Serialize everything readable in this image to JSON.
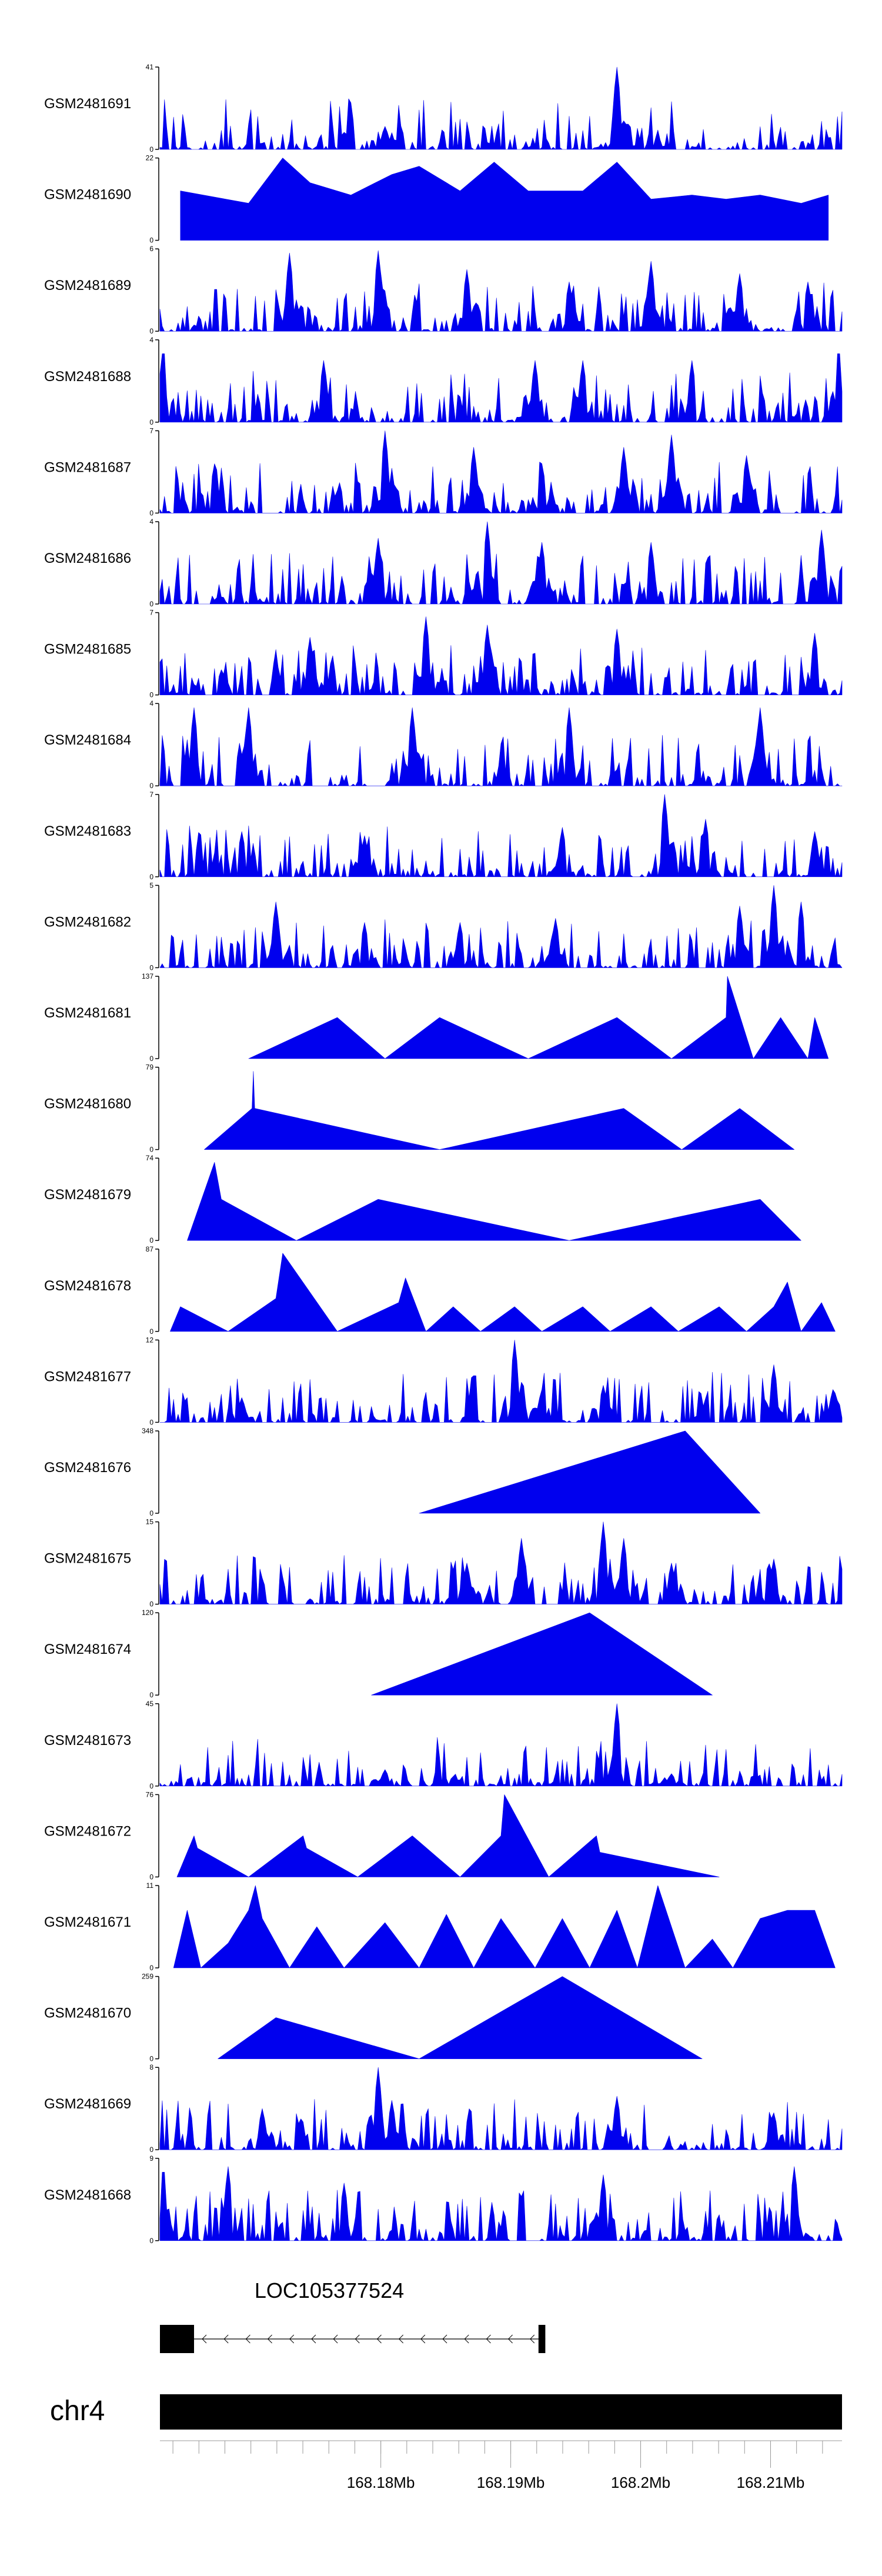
{
  "chart_data": {
    "type": "area",
    "title": "",
    "color": "#0000ee",
    "tracks": [
      {
        "name": "GSM2481691",
        "ymax": "41",
        "ymin": "0",
        "style": "dense",
        "peaks": [
          {
            "x": 0.33,
            "h": 0.28
          },
          {
            "x": 0.67,
            "h": 1.0
          },
          {
            "x": 0.685,
            "h": 0.35
          },
          {
            "x": 0.73,
            "h": 0.15
          }
        ]
      },
      {
        "name": "GSM2481690",
        "ymax": "22",
        "ymin": "0",
        "style": "triangles",
        "peaks": [
          {
            "x": 0.03,
            "h": 0.6
          },
          {
            "x": 0.13,
            "h": 0.45
          },
          {
            "x": 0.18,
            "h": 1.0
          },
          {
            "x": 0.22,
            "h": 0.7
          },
          {
            "x": 0.28,
            "h": 0.55
          },
          {
            "x": 0.34,
            "h": 0.8
          },
          {
            "x": 0.38,
            "h": 0.9
          },
          {
            "x": 0.44,
            "h": 0.6
          },
          {
            "x": 0.49,
            "h": 0.95
          },
          {
            "x": 0.54,
            "h": 0.6
          },
          {
            "x": 0.62,
            "h": 0.6
          },
          {
            "x": 0.67,
            "h": 0.95
          },
          {
            "x": 0.72,
            "h": 0.5
          },
          {
            "x": 0.78,
            "h": 0.55
          },
          {
            "x": 0.83,
            "h": 0.5
          },
          {
            "x": 0.88,
            "h": 0.55
          },
          {
            "x": 0.94,
            "h": 0.45
          },
          {
            "x": 0.98,
            "h": 0.55
          }
        ]
      },
      {
        "name": "GSM2481689",
        "ymax": "6",
        "ymin": "0",
        "style": "dense",
        "peaks": [
          {
            "x": 0.19,
            "h": 0.95
          },
          {
            "x": 0.32,
            "h": 0.98
          },
          {
            "x": 0.45,
            "h": 0.75
          },
          {
            "x": 0.6,
            "h": 0.6
          },
          {
            "x": 0.72,
            "h": 0.85
          },
          {
            "x": 0.85,
            "h": 0.7
          },
          {
            "x": 0.95,
            "h": 0.6
          }
        ]
      },
      {
        "name": "GSM2481688",
        "ymax": "4",
        "ymin": "0",
        "style": "dense",
        "peaks": [
          {
            "x": 0.005,
            "h": 0.95
          },
          {
            "x": 0.24,
            "h": 0.75
          },
          {
            "x": 0.55,
            "h": 0.75
          },
          {
            "x": 0.62,
            "h": 0.75
          },
          {
            "x": 0.78,
            "h": 0.75
          },
          {
            "x": 0.995,
            "h": 0.95
          }
        ]
      },
      {
        "name": "GSM2481687",
        "ymax": "7",
        "ymin": "0",
        "style": "dense",
        "peaks": [
          {
            "x": 0.08,
            "h": 0.6
          },
          {
            "x": 0.33,
            "h": 1.0
          },
          {
            "x": 0.46,
            "h": 0.8
          },
          {
            "x": 0.56,
            "h": 0.6
          },
          {
            "x": 0.68,
            "h": 0.8
          },
          {
            "x": 0.75,
            "h": 0.95
          },
          {
            "x": 0.86,
            "h": 0.7
          }
        ]
      },
      {
        "name": "GSM2481686",
        "ymax": "4",
        "ymin": "0",
        "style": "dense",
        "peaks": [
          {
            "x": 0.32,
            "h": 0.8
          },
          {
            "x": 0.48,
            "h": 1.0
          },
          {
            "x": 0.56,
            "h": 0.75
          },
          {
            "x": 0.72,
            "h": 0.75
          },
          {
            "x": 0.97,
            "h": 0.9
          }
        ]
      },
      {
        "name": "GSM2481685",
        "ymax": "7",
        "ymin": "0",
        "style": "dense",
        "peaks": [
          {
            "x": 0.22,
            "h": 0.7
          },
          {
            "x": 0.39,
            "h": 0.95
          },
          {
            "x": 0.48,
            "h": 0.85
          },
          {
            "x": 0.67,
            "h": 0.8
          },
          {
            "x": 0.96,
            "h": 0.75
          }
        ]
      },
      {
        "name": "GSM2481684",
        "ymax": "4",
        "ymin": "0",
        "style": "dense",
        "peaks": [
          {
            "x": 0.05,
            "h": 0.95
          },
          {
            "x": 0.13,
            "h": 0.95
          },
          {
            "x": 0.37,
            "h": 0.95
          },
          {
            "x": 0.6,
            "h": 0.95
          },
          {
            "x": 0.88,
            "h": 0.95
          }
        ]
      },
      {
        "name": "GSM2481683",
        "ymax": "7",
        "ymin": "0",
        "style": "dense",
        "peaks": [
          {
            "x": 0.12,
            "h": 0.55
          },
          {
            "x": 0.3,
            "h": 0.5
          },
          {
            "x": 0.59,
            "h": 0.6
          },
          {
            "x": 0.74,
            "h": 1.0
          },
          {
            "x": 0.8,
            "h": 0.7
          },
          {
            "x": 0.96,
            "h": 0.55
          }
        ]
      },
      {
        "name": "GSM2481682",
        "ymax": "5",
        "ymin": "0",
        "style": "dense",
        "peaks": [
          {
            "x": 0.17,
            "h": 0.8
          },
          {
            "x": 0.3,
            "h": 0.55
          },
          {
            "x": 0.44,
            "h": 0.55
          },
          {
            "x": 0.58,
            "h": 0.6
          },
          {
            "x": 0.85,
            "h": 0.75
          },
          {
            "x": 0.9,
            "h": 1.0
          },
          {
            "x": 0.94,
            "h": 0.8
          }
        ]
      },
      {
        "name": "GSM2481681",
        "ymax": "137",
        "ymin": "0",
        "style": "triangles",
        "peaks": [
          {
            "x": 0.13,
            "h": 0.0
          },
          {
            "x": 0.26,
            "h": 0.5
          },
          {
            "x": 0.33,
            "h": 0.0
          },
          {
            "x": 0.41,
            "h": 0.5
          },
          {
            "x": 0.54,
            "h": 0.0
          },
          {
            "x": 0.67,
            "h": 0.5
          },
          {
            "x": 0.75,
            "h": 0.0
          },
          {
            "x": 0.83,
            "h": 0.5
          },
          {
            "x": 0.832,
            "h": 1.0
          },
          {
            "x": 0.87,
            "h": 0.0
          },
          {
            "x": 0.91,
            "h": 0.5
          },
          {
            "x": 0.95,
            "h": 0.0
          },
          {
            "x": 0.96,
            "h": 0.5
          },
          {
            "x": 0.98,
            "h": 0.0
          }
        ]
      },
      {
        "name": "GSM2481680",
        "ymax": "79",
        "ymin": "0",
        "style": "triangles",
        "peaks": [
          {
            "x": 0.065,
            "h": 0.0
          },
          {
            "x": 0.135,
            "h": 0.5
          },
          {
            "x": 0.137,
            "h": 0.95
          },
          {
            "x": 0.139,
            "h": 0.5
          },
          {
            "x": 0.41,
            "h": 0.0
          },
          {
            "x": 0.68,
            "h": 0.5
          },
          {
            "x": 0.765,
            "h": 0.0
          },
          {
            "x": 0.85,
            "h": 0.5
          },
          {
            "x": 0.93,
            "h": 0.0
          }
        ]
      },
      {
        "name": "GSM2481679",
        "ymax": "74",
        "ymin": "0",
        "style": "triangles",
        "peaks": [
          {
            "x": 0.04,
            "h": 0.0
          },
          {
            "x": 0.08,
            "h": 0.95
          },
          {
            "x": 0.09,
            "h": 0.5
          },
          {
            "x": 0.2,
            "h": 0.0
          },
          {
            "x": 0.32,
            "h": 0.5
          },
          {
            "x": 0.6,
            "h": 0.0
          },
          {
            "x": 0.88,
            "h": 0.5
          },
          {
            "x": 0.94,
            "h": 0.0
          }
        ]
      },
      {
        "name": "GSM2481678",
        "ymax": "87",
        "ymin": "0",
        "style": "triangles",
        "peaks": [
          {
            "x": 0.015,
            "h": 0.0
          },
          {
            "x": 0.03,
            "h": 0.3
          },
          {
            "x": 0.1,
            "h": 0.0
          },
          {
            "x": 0.17,
            "h": 0.4
          },
          {
            "x": 0.18,
            "h": 0.95
          },
          {
            "x": 0.26,
            "h": 0.0
          },
          {
            "x": 0.35,
            "h": 0.35
          },
          {
            "x": 0.36,
            "h": 0.65
          },
          {
            "x": 0.39,
            "h": 0.0
          },
          {
            "x": 0.43,
            "h": 0.3
          },
          {
            "x": 0.47,
            "h": 0.0
          },
          {
            "x": 0.52,
            "h": 0.3
          },
          {
            "x": 0.56,
            "h": 0.0
          },
          {
            "x": 0.62,
            "h": 0.3
          },
          {
            "x": 0.66,
            "h": 0.0
          },
          {
            "x": 0.72,
            "h": 0.3
          },
          {
            "x": 0.76,
            "h": 0.0
          },
          {
            "x": 0.82,
            "h": 0.3
          },
          {
            "x": 0.86,
            "h": 0.0
          },
          {
            "x": 0.9,
            "h": 0.3
          },
          {
            "x": 0.92,
            "h": 0.6
          },
          {
            "x": 0.94,
            "h": 0.0
          },
          {
            "x": 0.97,
            "h": 0.35
          },
          {
            "x": 0.99,
            "h": 0.0
          }
        ]
      },
      {
        "name": "GSM2481677",
        "ymax": "12",
        "ymin": "0",
        "style": "dense",
        "peaks": [
          {
            "x": 0.12,
            "h": 0.3
          },
          {
            "x": 0.52,
            "h": 1.0
          },
          {
            "x": 0.56,
            "h": 0.4
          },
          {
            "x": 0.65,
            "h": 0.45
          },
          {
            "x": 0.9,
            "h": 0.7
          },
          {
            "x": 0.99,
            "h": 0.35
          }
        ]
      },
      {
        "name": "GSM2481676",
        "ymax": "348",
        "ymin": "0",
        "style": "triangles",
        "peaks": [
          {
            "x": 0.38,
            "h": 0.0
          },
          {
            "x": 0.77,
            "h": 1.0
          },
          {
            "x": 0.88,
            "h": 0.0
          }
        ]
      },
      {
        "name": "GSM2481675",
        "ymax": "15",
        "ymin": "0",
        "style": "dense",
        "peaks": [
          {
            "x": 0.45,
            "h": 0.5
          },
          {
            "x": 0.53,
            "h": 0.8
          },
          {
            "x": 0.65,
            "h": 1.0
          },
          {
            "x": 0.68,
            "h": 0.8
          },
          {
            "x": 0.75,
            "h": 0.5
          },
          {
            "x": 0.9,
            "h": 0.55
          }
        ]
      },
      {
        "name": "GSM2481674",
        "ymax": "120",
        "ymin": "0",
        "style": "triangles",
        "peaks": [
          {
            "x": 0.31,
            "h": 0.0
          },
          {
            "x": 0.63,
            "h": 1.0
          },
          {
            "x": 0.81,
            "h": 0.0
          }
        ]
      },
      {
        "name": "GSM2481673",
        "ymax": "45",
        "ymin": "0",
        "style": "dense",
        "peaks": [
          {
            "x": 0.33,
            "h": 0.2
          },
          {
            "x": 0.67,
            "h": 1.0
          },
          {
            "x": 0.75,
            "h": 0.15
          }
        ]
      },
      {
        "name": "GSM2481672",
        "ymax": "76",
        "ymin": "0",
        "style": "triangles",
        "peaks": [
          {
            "x": 0.025,
            "h": 0.0
          },
          {
            "x": 0.05,
            "h": 0.5
          },
          {
            "x": 0.055,
            "h": 0.35
          },
          {
            "x": 0.13,
            "h": 0.0
          },
          {
            "x": 0.21,
            "h": 0.5
          },
          {
            "x": 0.215,
            "h": 0.35
          },
          {
            "x": 0.29,
            "h": 0.0
          },
          {
            "x": 0.37,
            "h": 0.5
          },
          {
            "x": 0.44,
            "h": 0.0
          },
          {
            "x": 0.5,
            "h": 0.5
          },
          {
            "x": 0.505,
            "h": 1.0
          },
          {
            "x": 0.57,
            "h": 0.0
          },
          {
            "x": 0.64,
            "h": 0.5
          },
          {
            "x": 0.645,
            "h": 0.3
          },
          {
            "x": 0.82,
            "h": 0.0
          }
        ]
      },
      {
        "name": "GSM2481671",
        "ymax": "11",
        "ymin": "0",
        "style": "triangles",
        "peaks": [
          {
            "x": 0.02,
            "h": 0.0
          },
          {
            "x": 0.04,
            "h": 0.7
          },
          {
            "x": 0.06,
            "h": 0.0
          },
          {
            "x": 0.1,
            "h": 0.3
          },
          {
            "x": 0.13,
            "h": 0.7
          },
          {
            "x": 0.14,
            "h": 1.0
          },
          {
            "x": 0.15,
            "h": 0.6
          },
          {
            "x": 0.19,
            "h": 0.0
          },
          {
            "x": 0.23,
            "h": 0.5
          },
          {
            "x": 0.27,
            "h": 0.0
          },
          {
            "x": 0.33,
            "h": 0.55
          },
          {
            "x": 0.38,
            "h": 0.0
          },
          {
            "x": 0.42,
            "h": 0.65
          },
          {
            "x": 0.46,
            "h": 0.0
          },
          {
            "x": 0.5,
            "h": 0.6
          },
          {
            "x": 0.55,
            "h": 0.0
          },
          {
            "x": 0.59,
            "h": 0.6
          },
          {
            "x": 0.63,
            "h": 0.0
          },
          {
            "x": 0.67,
            "h": 0.7
          },
          {
            "x": 0.7,
            "h": 0.0
          },
          {
            "x": 0.73,
            "h": 1.0
          },
          {
            "x": 0.77,
            "h": 0.0
          },
          {
            "x": 0.81,
            "h": 0.35
          },
          {
            "x": 0.84,
            "h": 0.0
          },
          {
            "x": 0.88,
            "h": 0.6
          },
          {
            "x": 0.92,
            "h": 0.7
          },
          {
            "x": 0.96,
            "h": 0.7
          },
          {
            "x": 0.99,
            "h": 0.0
          }
        ]
      },
      {
        "name": "GSM2481670",
        "ymax": "259",
        "ymin": "0",
        "style": "triangles",
        "peaks": [
          {
            "x": 0.085,
            "h": 0.0
          },
          {
            "x": 0.17,
            "h": 0.5
          },
          {
            "x": 0.38,
            "h": 0.0
          },
          {
            "x": 0.59,
            "h": 1.0
          },
          {
            "x": 0.795,
            "h": 0.0
          }
        ]
      },
      {
        "name": "GSM2481669",
        "ymax": "8",
        "ymin": "0",
        "style": "dense",
        "peaks": [
          {
            "x": 0.15,
            "h": 0.5
          },
          {
            "x": 0.32,
            "h": 1.0
          },
          {
            "x": 0.34,
            "h": 0.6
          },
          {
            "x": 0.67,
            "h": 0.65
          },
          {
            "x": 0.9,
            "h": 0.45
          }
        ]
      },
      {
        "name": "GSM2481668",
        "ymax": "9",
        "ymin": "0",
        "style": "dense",
        "peaks": [
          {
            "x": 0.005,
            "h": 0.95
          },
          {
            "x": 0.1,
            "h": 0.9
          },
          {
            "x": 0.27,
            "h": 0.7
          },
          {
            "x": 0.65,
            "h": 0.8
          },
          {
            "x": 0.93,
            "h": 0.9
          }
        ]
      }
    ],
    "gene": {
      "name": "LOC105377524",
      "strand": "-",
      "start_frac": 0.0,
      "end_frac": 0.565,
      "exon_start_frac": 0.0,
      "exon_end_frac": 0.05,
      "exon2_start_frac": 0.555,
      "exon2_end_frac": 0.565
    },
    "chromosome": "chr4",
    "axis": {
      "range_mb": [
        168.163,
        168.2155
      ],
      "tick_labels": [
        "168.18Mb",
        "168.19Mb",
        "168.2Mb",
        "168.21Mb"
      ],
      "tick_values": [
        168.18,
        168.19,
        168.2,
        168.21
      ],
      "minor_step_mb": 0.002
    }
  }
}
